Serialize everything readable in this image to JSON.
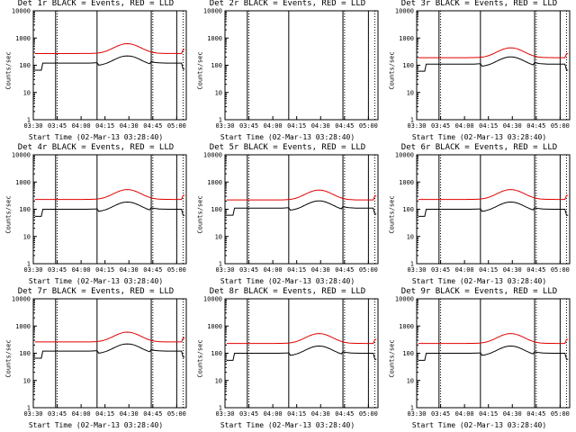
{
  "colors": {
    "events": "#000000",
    "lld": "#e00000",
    "axes": "#000000"
  },
  "chart_data": [
    {
      "type": "line",
      "title": "Det 1r BLACK = Events, RED = LLD",
      "xlabel": "Start Time (02-Mar-13 03:28:40)",
      "ylabel": "Counts/sec",
      "ylog": true,
      "ylim": [
        1,
        10000
      ],
      "xticks": [
        "03:30",
        "03:45",
        "04:00",
        "04:15",
        "04:30",
        "04:45",
        "05:00"
      ],
      "yticks": [
        "1",
        "10",
        "100",
        "1000",
        "10000"
      ],
      "series": [
        {
          "name": "Events",
          "color": "#000000",
          "level": 120
        },
        {
          "name": "LLD",
          "color": "#e00000",
          "level": 270
        }
      ],
      "vlines_solid": [
        "03:44",
        "04:10",
        "04:44",
        "05:00"
      ],
      "vlines_dotted": [
        "03:45",
        "04:45",
        "05:04"
      ]
    },
    {
      "type": "line",
      "title": "Det 2r BLACK = Events, RED = LLD",
      "xlabel": "Start Time (02-Mar-13 03:28:40)",
      "ylabel": "Counts/sec",
      "ylog": true,
      "ylim": [
        1,
        10000
      ],
      "xticks": [
        "03:30",
        "03:45",
        "04:00",
        "04:15",
        "04:30",
        "04:45",
        "05:00"
      ],
      "yticks": [
        "1",
        "10",
        "100",
        "1000",
        "10000"
      ],
      "series": [],
      "vlines_solid": [
        "03:44",
        "04:10",
        "04:44",
        "05:00"
      ],
      "vlines_dotted": [
        "03:45",
        "04:45",
        "05:04"
      ]
    },
    {
      "type": "line",
      "title": "Det 3r BLACK = Events, RED = LLD",
      "xlabel": "Start Time (02-Mar-13 03:28:40)",
      "ylabel": "Counts/sec",
      "ylog": true,
      "ylim": [
        1,
        10000
      ],
      "xticks": [
        "03:30",
        "03:45",
        "04:00",
        "04:15",
        "04:30",
        "04:45",
        "05:00"
      ],
      "yticks": [
        "1",
        "10",
        "100",
        "1000",
        "10000"
      ],
      "series": [
        {
          "name": "Events",
          "color": "#000000",
          "level": 110
        },
        {
          "name": "LLD",
          "color": "#e00000",
          "level": 190
        }
      ],
      "vlines_solid": [
        "03:44",
        "04:10",
        "04:44",
        "05:00"
      ],
      "vlines_dotted": [
        "03:45",
        "04:45",
        "05:04"
      ]
    },
    {
      "type": "line",
      "title": "Det 4r BLACK = Events, RED = LLD",
      "xlabel": "Start Time (02-Mar-13 03:28:40)",
      "ylabel": "Counts/sec",
      "ylog": true,
      "ylim": [
        1,
        10000
      ],
      "xticks": [
        "03:30",
        "03:45",
        "04:00",
        "04:15",
        "04:30",
        "04:45",
        "05:00"
      ],
      "yticks": [
        "1",
        "10",
        "100",
        "1000",
        "10000"
      ],
      "series": [
        {
          "name": "Events",
          "color": "#000000",
          "level": 100
        },
        {
          "name": "LLD",
          "color": "#e00000",
          "level": 230
        }
      ],
      "vlines_solid": [
        "03:44",
        "04:10",
        "04:44",
        "05:00"
      ],
      "vlines_dotted": [
        "03:45",
        "04:45",
        "05:04"
      ]
    },
    {
      "type": "line",
      "title": "Det 5r BLACK = Events, RED = LLD",
      "xlabel": "Start Time (02-Mar-13 03:28:40)",
      "ylabel": "Counts/sec",
      "ylog": true,
      "ylim": [
        1,
        10000
      ],
      "xticks": [
        "03:30",
        "03:45",
        "04:00",
        "04:15",
        "04:30",
        "04:45",
        "05:00"
      ],
      "yticks": [
        "1",
        "10",
        "100",
        "1000",
        "10000"
      ],
      "series": [
        {
          "name": "Events",
          "color": "#000000",
          "level": 110
        },
        {
          "name": "LLD",
          "color": "#e00000",
          "level": 220
        }
      ],
      "vlines_solid": [
        "03:44",
        "04:10",
        "04:44",
        "05:00"
      ],
      "vlines_dotted": [
        "03:45",
        "04:45",
        "05:04"
      ]
    },
    {
      "type": "line",
      "title": "Det 6r BLACK = Events, RED = LLD",
      "xlabel": "Start Time (02-Mar-13 03:28:40)",
      "ylabel": "Counts/sec",
      "ylog": true,
      "ylim": [
        1,
        10000
      ],
      "xticks": [
        "03:30",
        "03:45",
        "04:00",
        "04:15",
        "04:30",
        "04:45",
        "05:00"
      ],
      "yticks": [
        "1",
        "10",
        "100",
        "1000",
        "10000"
      ],
      "series": [
        {
          "name": "Events",
          "color": "#000000",
          "level": 100
        },
        {
          "name": "LLD",
          "color": "#e00000",
          "level": 230
        }
      ],
      "vlines_solid": [
        "03:44",
        "04:10",
        "04:44",
        "05:00"
      ],
      "vlines_dotted": [
        "03:45",
        "04:45",
        "05:04"
      ]
    },
    {
      "type": "line",
      "title": "Det 7r BLACK = Events, RED = LLD",
      "xlabel": "Start Time (02-Mar-13 03:28:40)",
      "ylabel": "Counts/sec",
      "ylog": true,
      "ylim": [
        1,
        10000
      ],
      "xticks": [
        "03:30",
        "03:45",
        "04:00",
        "04:15",
        "04:30",
        "04:45",
        "05:00"
      ],
      "yticks": [
        "1",
        "10",
        "100",
        "1000",
        "10000"
      ],
      "series": [
        {
          "name": "Events",
          "color": "#000000",
          "level": 120
        },
        {
          "name": "LLD",
          "color": "#e00000",
          "level": 260
        }
      ],
      "vlines_solid": [
        "03:44",
        "04:10",
        "04:44",
        "05:00"
      ],
      "vlines_dotted": [
        "03:45",
        "04:45",
        "05:04"
      ]
    },
    {
      "type": "line",
      "title": "Det 8r BLACK = Events, RED = LLD",
      "xlabel": "Start Time (02-Mar-13 03:28:40)",
      "ylabel": "Counts/sec",
      "ylog": true,
      "ylim": [
        1,
        10000
      ],
      "xticks": [
        "03:30",
        "03:45",
        "04:00",
        "04:15",
        "04:30",
        "04:45",
        "05:00"
      ],
      "yticks": [
        "1",
        "10",
        "100",
        "1000",
        "10000"
      ],
      "series": [
        {
          "name": "Events",
          "color": "#000000",
          "level": 100
        },
        {
          "name": "LLD",
          "color": "#e00000",
          "level": 230
        }
      ],
      "vlines_solid": [
        "03:44",
        "04:10",
        "04:44",
        "05:00"
      ],
      "vlines_dotted": [
        "03:45",
        "04:45",
        "05:04"
      ]
    },
    {
      "type": "line",
      "title": "Det 9r BLACK = Events, RED = LLD",
      "xlabel": "Start Time (02-Mar-13 03:28:40)",
      "ylabel": "Counts/sec",
      "ylog": true,
      "ylim": [
        1,
        10000
      ],
      "xticks": [
        "03:30",
        "03:45",
        "04:00",
        "04:15",
        "04:30",
        "04:45",
        "05:00"
      ],
      "yticks": [
        "1",
        "10",
        "100",
        "1000",
        "10000"
      ],
      "series": [
        {
          "name": "Events",
          "color": "#000000",
          "level": 100
        },
        {
          "name": "LLD",
          "color": "#e00000",
          "level": 230
        }
      ],
      "vlines_solid": [
        "03:44",
        "04:10",
        "04:44",
        "05:00"
      ],
      "vlines_dotted": [
        "03:45",
        "04:45",
        "05:04"
      ]
    }
  ]
}
